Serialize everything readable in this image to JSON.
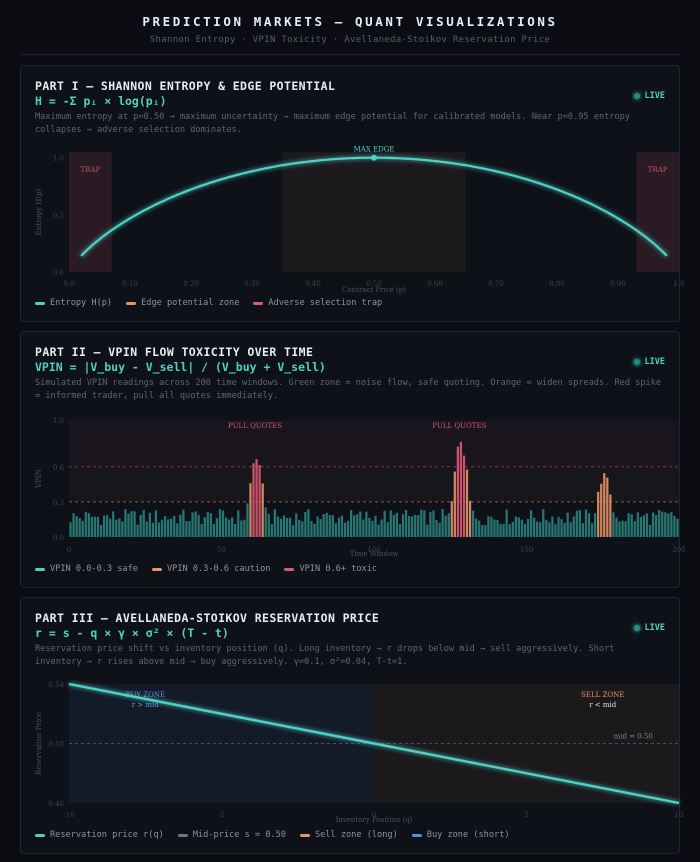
{
  "header": {
    "title": "PREDICTION MARKETS — QUANT VISUALIZATIONS",
    "subtitle": "Shannon Entropy · VPIN Toxicity · Avellaneda-Stoikov Reservation Price"
  },
  "colors": {
    "teal": "#4fd1c5",
    "orange": "#e8956a",
    "red": "#e05a74",
    "blue": "#5b8de0",
    "gray": "#6e7681"
  },
  "panels": [
    {
      "title": "PART I — SHANNON ENTROPY & EDGE POTENTIAL",
      "formula": "H = -Σ pᵢ × log(pᵢ)",
      "desc": "Maximum entropy at p=0.50 → maximum uncertainty → maximum edge potential for calibrated models. Near p=0.95 entropy collapses → adverse selection dominates.",
      "live": "LIVE",
      "legend": [
        "Entropy H(p)",
        "Edge potential zone",
        "Adverse selection trap"
      ]
    },
    {
      "title": "PART II — VPIN FLOW TOXICITY OVER TIME",
      "formula": "VPIN = |V_buy - V_sell| / (V_buy + V_sell)",
      "desc": "Simulated VPIN readings across 200 time windows. Green zone = noise flow, safe quoting. Orange = widen spreads. Red spike = informed trader, pull all quotes immediately.",
      "live": "LIVE",
      "legend": [
        "VPIN 0.0-0.3 safe",
        "VPIN 0.3-0.6 caution",
        "VPIN 0.6+ toxic"
      ]
    },
    {
      "title": "PART III — AVELLANEDA-STOIKOV RESERVATION PRICE",
      "formula": "r = s - q × γ × σ² × (T - t)",
      "desc": "Reservation price shift vs inventory position (q). Long inventory → r drops below mid → sell aggressively. Short inventory → r rises above mid → buy aggressively. γ=0.1, σ²=0.04, T-t=1.",
      "live": "LIVE",
      "legend": [
        "Reservation price r(q)",
        "Mid-price s = 0.50",
        "Sell zone (long)",
        "Buy zone (short)"
      ]
    }
  ],
  "chart_data": [
    {
      "type": "line",
      "xlabel": "Contract Price (p)",
      "ylabel": "Entropy H(p)",
      "xlim": [
        0,
        1
      ],
      "ylim": [
        0,
        1.05
      ],
      "xticks": [
        "0.0",
        "0.10",
        "0.20",
        "0.30",
        "0.40",
        "0.50",
        "0.60",
        "0.70",
        "0.80",
        "0.90",
        "1.0"
      ],
      "yticks": [
        "0.0",
        "0.5",
        "1.0"
      ],
      "series": [
        {
          "name": "Entropy H(p)",
          "function": "binary entropy, max 1.0 at p=0.50"
        }
      ],
      "peak": {
        "x": 0.5,
        "y": 1.0,
        "label": "MAX EDGE"
      },
      "zones": [
        {
          "label": "TRAP",
          "from": 0.0,
          "to": 0.07,
          "kind": "trap"
        },
        {
          "label": "",
          "from": 0.35,
          "to": 0.65,
          "kind": "edge"
        },
        {
          "label": "TRAP",
          "from": 0.93,
          "to": 1.0,
          "kind": "trap"
        }
      ]
    },
    {
      "type": "bar",
      "xlabel": "Time Window",
      "ylabel": "VPIN",
      "xlim": [
        0,
        200
      ],
      "ylim": [
        0,
        1
      ],
      "xticks": [
        "0",
        "50",
        "100",
        "150",
        "200"
      ],
      "yticks": [
        "0.0",
        "0.3",
        "0.6",
        "1.0"
      ],
      "thresholds": [
        0.3,
        0.6
      ],
      "annotations": [
        "PULL QUOTES",
        "PULL QUOTES"
      ],
      "spikes": [
        {
          "center": 61,
          "peak": 0.71
        },
        {
          "center": 128,
          "peak": 0.88
        },
        {
          "center": 175,
          "peak": 0.58
        }
      ],
      "baseline_range": [
        0.1,
        0.24
      ]
    },
    {
      "type": "line",
      "xlabel": "Inventory Position (q)",
      "ylabel": "Reservation Price",
      "xlim": [
        -10,
        10
      ],
      "ylim": [
        0.46,
        0.54
      ],
      "xticks": [
        "-10",
        "-5",
        "0",
        "5",
        "10"
      ],
      "yticks": [
        "0.46",
        "0.50",
        "0.54"
      ],
      "series": [
        {
          "name": "Reservation price r(q)",
          "x": [
            -10,
            10
          ],
          "y": [
            0.54,
            0.46
          ]
        }
      ],
      "midprice": {
        "value": 0.5,
        "label": "mid = 0.50"
      },
      "zones": [
        {
          "label": "BUY ZONE",
          "sublabel": "r > mid",
          "from": -10,
          "to": 0
        },
        {
          "label": "SELL ZONE",
          "sublabel": "r < mid",
          "from": 0,
          "to": 10
        }
      ]
    }
  ]
}
